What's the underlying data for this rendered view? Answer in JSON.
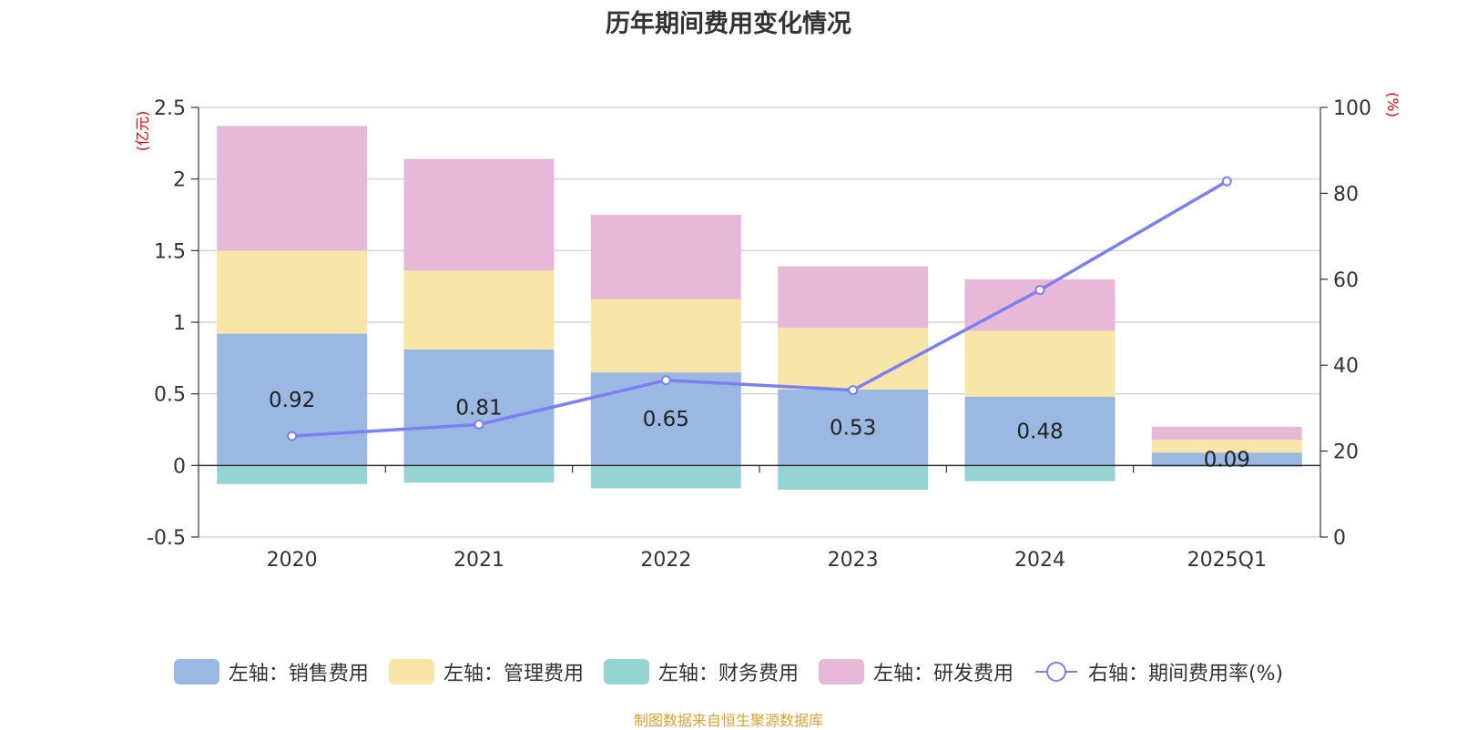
{
  "chart_data": {
    "type": "bar",
    "title": "历年期间费用变化情况",
    "categories": [
      "2020",
      "2021",
      "2022",
      "2023",
      "2024",
      "2025Q1"
    ],
    "left_axis": {
      "unit": "(亿元)",
      "ylim": [
        -0.5,
        2.5
      ],
      "ticks": [
        "2.5",
        "2",
        "1.5",
        "1",
        "0.5",
        "0",
        "-0.5"
      ]
    },
    "right_axis": {
      "unit": "(%)",
      "ylim": [
        0,
        100
      ],
      "ticks": [
        "100",
        "80",
        "60",
        "40",
        "20",
        "0"
      ]
    },
    "series": [
      {
        "name": "左轴：销售费用",
        "type": "bar",
        "stack": true,
        "color": "#9bb8e2",
        "values": [
          0.92,
          0.81,
          0.65,
          0.53,
          0.48,
          0.09
        ],
        "labels": [
          "0.92",
          "0.81",
          "0.65",
          "0.53",
          "0.48",
          "0.09"
        ]
      },
      {
        "name": "左轴：管理费用",
        "type": "bar",
        "stack": true,
        "color": "#f7e6a8",
        "values": [
          0.58,
          0.55,
          0.51,
          0.43,
          0.46,
          0.09
        ]
      },
      {
        "name": "左轴：财务费用",
        "type": "bar",
        "stack": true,
        "color": "#96d4d4",
        "values": [
          -0.13,
          -0.12,
          -0.16,
          -0.17,
          -0.11,
          -0.01
        ]
      },
      {
        "name": "左轴：研发费用",
        "type": "bar",
        "stack": true,
        "color": "#e8b8d8",
        "values": [
          0.87,
          0.78,
          0.59,
          0.43,
          0.36,
          0.09
        ]
      },
      {
        "name": "右轴：期间费用率(%)",
        "type": "line",
        "axis": "right",
        "color": "#7b7ff0",
        "values": [
          23.5,
          26.2,
          36.5,
          34.2,
          57.5,
          82.8
        ]
      }
    ],
    "grid": true,
    "legend_position": "bottom"
  },
  "source_note": "制图数据来自恒生聚源数据库"
}
